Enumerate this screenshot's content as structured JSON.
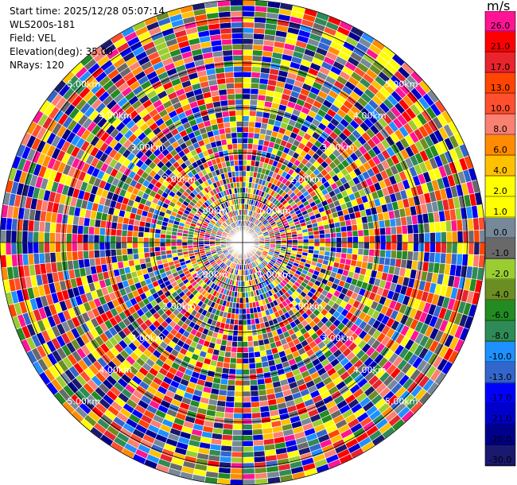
{
  "header": {
    "start_time": "Start time: 2025/12/28 05:07:14",
    "instrument": "WLS200s-181",
    "field": "Field: VEL",
    "elevation": "Elevation(deg): 35.00",
    "nrays": "NRays: 120"
  },
  "chart_data": {
    "type": "heatmap",
    "projection": "polar-ppi",
    "n_rays": 120,
    "range_rings_km": [
      1,
      2,
      3,
      4,
      5
    ],
    "ring_labels": [
      "1.00km",
      "2.00km",
      "3.00km",
      "4.00km",
      "5.00km"
    ],
    "max_range_km": 5.4,
    "colorbar": {
      "unit": "m/s",
      "tick_labels": [
        "26.0",
        "21.0",
        "17.0",
        "13.0",
        "10.0",
        "8.0",
        "6.0",
        "4.0",
        "2.0",
        "1.0",
        "0.0",
        "-1.0",
        "-2.0",
        "-4.0",
        "-6.0",
        "-8.0",
        "-10.0",
        "-13.0",
        "-17.0",
        "-21.0",
        "-26.0",
        "-30.0"
      ],
      "colors": [
        "#ff1493",
        "#ff0000",
        "#e8242c",
        "#ff4500",
        "#ff4f2e",
        "#fa8072",
        "#ff8c00",
        "#ffc000",
        "#ffff00",
        "#ffff00",
        "#778899",
        "#696969",
        "#9acd32",
        "#6b8e23",
        "#228b22",
        "#2e8b57",
        "#1e90ff",
        "#3366cc",
        "#0000ff",
        "#0000cd",
        "#00008b",
        "#191970"
      ]
    }
  },
  "colors": {
    "background": "#ffffff",
    "ring": "#000000",
    "ring_label": "#ffffff"
  }
}
